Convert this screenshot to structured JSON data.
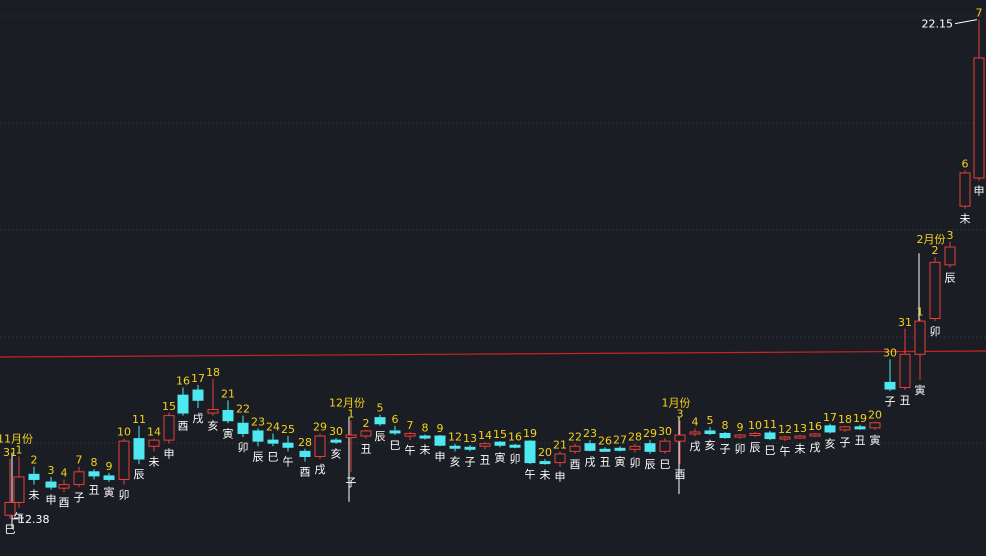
{
  "chart_data": {
    "type": "candlestick",
    "title": "",
    "xlabel": "",
    "ylabel": "",
    "grid": true,
    "colors": {
      "background": "#1b1d24",
      "up": "#e8403a",
      "down": "#4ee8f0",
      "ma_line": "#c8251f",
      "label": "#f4d21c",
      "grid": "#3a3d47"
    },
    "price_labels": {
      "max": "22.15",
      "min": "12.38"
    },
    "y_range": [
      12.2,
      22.3
    ],
    "candles": [
      {
        "o": 12.45,
        "h": 13.55,
        "l": 12.38,
        "c": 12.7,
        "day": "31",
        "zodiac": "巳"
      },
      {
        "o": 12.7,
        "h": 13.6,
        "l": 12.6,
        "c": 13.2,
        "day": "1",
        "zodiac": "午",
        "month": "11月份"
      },
      {
        "o": 13.25,
        "h": 13.4,
        "l": 13.05,
        "c": 13.15,
        "day": "2",
        "zodiac": "未"
      },
      {
        "o": 13.1,
        "h": 13.2,
        "l": 12.95,
        "c": 13.0,
        "day": "3",
        "zodiac": "申"
      },
      {
        "o": 12.98,
        "h": 13.15,
        "l": 12.9,
        "c": 13.05,
        "day": "4",
        "zodiac": "酉"
      },
      {
        "o": 13.05,
        "h": 13.4,
        "l": 13.0,
        "c": 13.3,
        "day": "7",
        "zodiac": "子"
      },
      {
        "o": 13.3,
        "h": 13.35,
        "l": 13.15,
        "c": 13.22,
        "day": "8",
        "zodiac": "丑"
      },
      {
        "o": 13.22,
        "h": 13.28,
        "l": 13.1,
        "c": 13.15,
        "day": "9",
        "zodiac": "寅"
      },
      {
        "o": 13.15,
        "h": 13.95,
        "l": 13.05,
        "c": 13.9,
        "day": "10",
        "zodiac": "卯"
      },
      {
        "o": 13.95,
        "h": 14.2,
        "l": 13.45,
        "c": 13.55,
        "day": "11",
        "zodiac": "辰"
      },
      {
        "o": 13.8,
        "h": 13.95,
        "l": 13.7,
        "c": 13.92,
        "day": "14",
        "zodiac": "未"
      },
      {
        "o": 13.92,
        "h": 14.45,
        "l": 13.85,
        "c": 14.4,
        "day": "15",
        "zodiac": "申"
      },
      {
        "o": 14.8,
        "h": 14.95,
        "l": 14.4,
        "c": 14.45,
        "day": "16",
        "zodiac": "酉"
      },
      {
        "o": 14.9,
        "h": 15.0,
        "l": 14.55,
        "c": 14.7,
        "day": "17",
        "zodiac": "戌"
      },
      {
        "o": 14.45,
        "h": 15.12,
        "l": 14.4,
        "c": 14.52,
        "day": "18",
        "zodiac": "亥"
      },
      {
        "o": 14.5,
        "h": 14.7,
        "l": 14.25,
        "c": 14.3,
        "day": "21",
        "zodiac": "寅"
      },
      {
        "o": 14.25,
        "h": 14.4,
        "l": 13.98,
        "c": 14.05,
        "day": "22",
        "zodiac": "卯"
      },
      {
        "o": 14.1,
        "h": 14.15,
        "l": 13.8,
        "c": 13.9,
        "day": "23",
        "zodiac": "辰"
      },
      {
        "o": 13.92,
        "h": 14.05,
        "l": 13.8,
        "c": 13.86,
        "day": "24",
        "zodiac": "巳"
      },
      {
        "o": 13.86,
        "h": 14.0,
        "l": 13.7,
        "c": 13.78,
        "day": "25",
        "zodiac": "午"
      },
      {
        "o": 13.7,
        "h": 13.75,
        "l": 13.5,
        "c": 13.6,
        "day": "28",
        "zodiac": "酉"
      },
      {
        "o": 13.6,
        "h": 14.05,
        "l": 13.55,
        "c": 14.0,
        "day": "29",
        "zodiac": "戌"
      },
      {
        "o": 13.92,
        "h": 13.96,
        "l": 13.85,
        "c": 13.88,
        "day": "30",
        "zodiac": "亥"
      },
      {
        "o": 13.97,
        "h": 14.3,
        "l": 13.3,
        "c": 14.02,
        "day": "1",
        "zodiac": "子",
        "month": "12月份"
      },
      {
        "o": 14.0,
        "h": 14.12,
        "l": 13.95,
        "c": 14.1,
        "day": "2",
        "zodiac": "丑"
      },
      {
        "o": 14.36,
        "h": 14.42,
        "l": 14.2,
        "c": 14.24,
        "day": "5",
        "zodiac": "辰"
      },
      {
        "o": 14.1,
        "h": 14.2,
        "l": 14.02,
        "c": 14.06,
        "day": "6",
        "zodiac": "巳"
      },
      {
        "o": 14.0,
        "h": 14.08,
        "l": 13.92,
        "c": 14.05,
        "day": "7",
        "zodiac": "午"
      },
      {
        "o": 14.0,
        "h": 14.03,
        "l": 13.93,
        "c": 13.97,
        "day": "8",
        "zodiac": "未"
      },
      {
        "o": 14.0,
        "h": 14.02,
        "l": 13.8,
        "c": 13.82,
        "day": "9",
        "zodiac": "申"
      },
      {
        "o": 13.8,
        "h": 13.85,
        "l": 13.7,
        "c": 13.78,
        "day": "12",
        "zodiac": "亥"
      },
      {
        "o": 13.78,
        "h": 13.82,
        "l": 13.7,
        "c": 13.75,
        "day": "13",
        "zodiac": "子"
      },
      {
        "o": 13.8,
        "h": 13.88,
        "l": 13.74,
        "c": 13.85,
        "day": "14",
        "zodiac": "丑"
      },
      {
        "o": 13.88,
        "h": 13.9,
        "l": 13.78,
        "c": 13.82,
        "day": "15",
        "zodiac": "寅"
      },
      {
        "o": 13.82,
        "h": 13.85,
        "l": 13.76,
        "c": 13.8,
        "day": "16",
        "zodiac": "卯"
      },
      {
        "o": 13.9,
        "h": 13.92,
        "l": 13.45,
        "c": 13.48,
        "day": "19",
        "zodiac": "午"
      },
      {
        "o": 13.5,
        "h": 13.55,
        "l": 13.44,
        "c": 13.48,
        "day": "20",
        "zodiac": "未"
      },
      {
        "o": 13.48,
        "h": 13.7,
        "l": 13.4,
        "c": 13.65,
        "day": "21",
        "zodiac": "申"
      },
      {
        "o": 13.7,
        "h": 13.85,
        "l": 13.65,
        "c": 13.8,
        "day": "22",
        "zodiac": "酉"
      },
      {
        "o": 13.85,
        "h": 13.92,
        "l": 13.7,
        "c": 13.72,
        "day": "23",
        "zodiac": "戌"
      },
      {
        "o": 13.74,
        "h": 13.78,
        "l": 13.7,
        "c": 13.72,
        "day": "26",
        "zodiac": "丑"
      },
      {
        "o": 13.76,
        "h": 13.8,
        "l": 13.7,
        "c": 13.74,
        "day": "27",
        "zodiac": "寅"
      },
      {
        "o": 13.74,
        "h": 13.85,
        "l": 13.68,
        "c": 13.8,
        "day": "28",
        "zodiac": "卯"
      },
      {
        "o": 13.85,
        "h": 13.92,
        "l": 13.65,
        "c": 13.7,
        "day": "29",
        "zodiac": "辰"
      },
      {
        "o": 13.7,
        "h": 13.96,
        "l": 13.65,
        "c": 13.9,
        "day": "30",
        "zodiac": "巳"
      },
      {
        "o": 13.9,
        "h": 14.3,
        "l": 13.45,
        "c": 14.02,
        "day": "3",
        "zodiac": "酉",
        "month": "1月份"
      },
      {
        "o": 14.06,
        "h": 14.15,
        "l": 14.0,
        "c": 14.08,
        "day": "4",
        "zodiac": "戌"
      },
      {
        "o": 14.1,
        "h": 14.18,
        "l": 14.02,
        "c": 14.05,
        "day": "5",
        "zodiac": "亥"
      },
      {
        "o": 14.05,
        "h": 14.08,
        "l": 13.95,
        "c": 13.97,
        "day": "8",
        "zodiac": "子"
      },
      {
        "o": 13.98,
        "h": 14.04,
        "l": 13.95,
        "c": 14.02,
        "day": "9",
        "zodiac": "卯"
      },
      {
        "o": 14.03,
        "h": 14.08,
        "l": 13.98,
        "c": 14.05,
        "day": "10",
        "zodiac": "辰"
      },
      {
        "o": 14.06,
        "h": 14.1,
        "l": 13.92,
        "c": 13.95,
        "day": "11",
        "zodiac": "巳"
      },
      {
        "o": 13.95,
        "h": 14.0,
        "l": 13.9,
        "c": 13.98,
        "day": "12",
        "zodiac": "午"
      },
      {
        "o": 13.98,
        "h": 14.02,
        "l": 13.95,
        "c": 14.0,
        "day": "13",
        "zodiac": "未"
      },
      {
        "o": 14.0,
        "h": 14.06,
        "l": 13.98,
        "c": 14.04,
        "day": "16",
        "zodiac": "戌"
      },
      {
        "o": 14.2,
        "h": 14.24,
        "l": 14.05,
        "c": 14.08,
        "day": "17",
        "zodiac": "亥"
      },
      {
        "o": 14.12,
        "h": 14.2,
        "l": 14.08,
        "c": 14.18,
        "day": "18",
        "zodiac": "子"
      },
      {
        "o": 14.18,
        "h": 14.22,
        "l": 14.12,
        "c": 14.16,
        "day": "19",
        "zodiac": "丑"
      },
      {
        "o": 14.16,
        "h": 14.28,
        "l": 14.12,
        "c": 14.26,
        "day": "20",
        "zodiac": "寅"
      },
      {
        "o": 15.05,
        "h": 15.5,
        "l": 14.88,
        "c": 14.92,
        "day": "30",
        "zodiac": "子"
      },
      {
        "o": 14.95,
        "h": 16.1,
        "l": 14.9,
        "c": 15.6,
        "day": "31",
        "zodiac": "丑"
      },
      {
        "o": 15.6,
        "h": 16.3,
        "l": 15.1,
        "c": 16.25,
        "day": "1",
        "zodiac": "寅"
      },
      {
        "o": 16.3,
        "h": 17.5,
        "l": 16.25,
        "c": 17.4,
        "day": "2",
        "zodiac": "卯",
        "month": "2月份"
      },
      {
        "o": 17.35,
        "h": 17.8,
        "l": 17.3,
        "c": 17.7,
        "day": "3",
        "zodiac": "辰"
      },
      {
        "o": 18.5,
        "h": 19.2,
        "l": 18.45,
        "c": 19.15,
        "day": "6",
        "zodiac": "未"
      },
      {
        "o": 19.05,
        "h": 22.15,
        "l": 19.0,
        "c": 21.4,
        "day": "7",
        "zodiac": "申"
      }
    ]
  }
}
